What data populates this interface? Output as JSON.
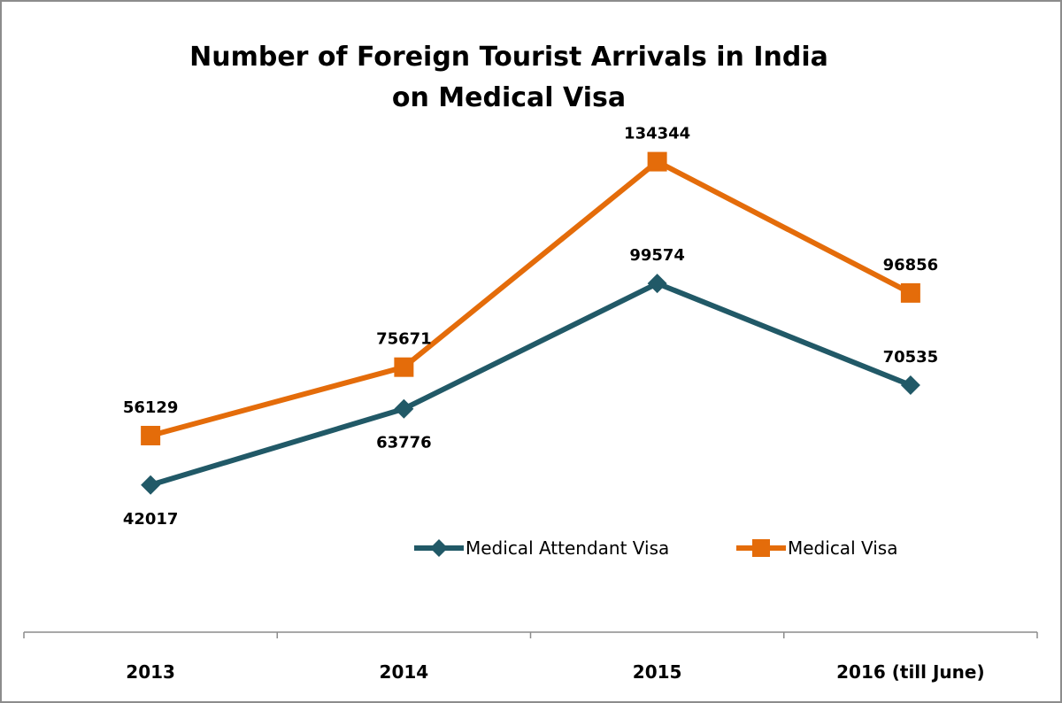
{
  "chart_data": {
    "type": "line",
    "title_lines": [
      "Number of Foreign Tourist Arrivals in India",
      "on Medical Visa"
    ],
    "categories": [
      "2013",
      "2014",
      "2015",
      "2016 (till June)"
    ],
    "series": [
      {
        "name": "Medical Attendant Visa",
        "values": [
          42017,
          63776,
          99574,
          70535
        ],
        "color": "#215967",
        "marker": "diamond"
      },
      {
        "name": "Medical Visa",
        "values": [
          56129,
          75671,
          134344,
          96856
        ],
        "color": "#E46C0A",
        "marker": "square"
      }
    ],
    "ylim": [
      0,
      180000
    ],
    "grid": false,
    "y_axis_visible": false,
    "legend": "bottom-right"
  }
}
